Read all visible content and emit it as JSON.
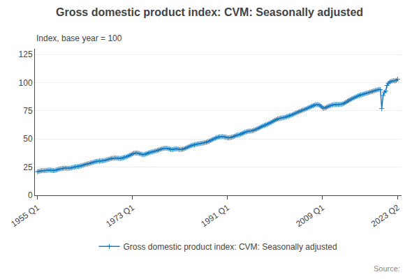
{
  "chart_data": {
    "type": "line",
    "title": "Gross domestic product index: CVM: Seasonally adjusted",
    "subtitle": "Index, base year = 100",
    "annotations": [
      "Source:"
    ],
    "xlim": [
      1954.5,
      2024.0
    ],
    "xticks": [
      {
        "value": 1955.0,
        "label": "1955 Q1"
      },
      {
        "value": 1973.0,
        "label": "1973 Q1"
      },
      {
        "value": 1991.0,
        "label": "1991 Q1"
      },
      {
        "value": 2009.0,
        "label": "2009 Q1"
      },
      {
        "value": 2023.25,
        "label": "2023 Q2"
      }
    ],
    "ylim": [
      0,
      130
    ],
    "yticks": [
      0,
      25,
      50,
      75,
      100,
      125
    ],
    "grid": "y",
    "legend": "bottom",
    "x": [
      1955.0,
      1955.25,
      1955.5,
      1955.75,
      1956.0,
      1956.25,
      1956.5,
      1956.75,
      1957.0,
      1957.25,
      1957.5,
      1957.75,
      1958.0,
      1958.25,
      1958.5,
      1958.75,
      1959.0,
      1959.25,
      1959.5,
      1959.75,
      1960.0,
      1960.25,
      1960.5,
      1960.75,
      1961.0,
      1961.25,
      1961.5,
      1961.75,
      1962.0,
      1962.25,
      1962.5,
      1962.75,
      1963.0,
      1963.25,
      1963.5,
      1963.75,
      1964.0,
      1964.25,
      1964.5,
      1964.75,
      1965.0,
      1965.25,
      1965.5,
      1965.75,
      1966.0,
      1966.25,
      1966.5,
      1966.75,
      1967.0,
      1967.25,
      1967.5,
      1967.75,
      1968.0,
      1968.25,
      1968.5,
      1968.75,
      1969.0,
      1969.25,
      1969.5,
      1969.75,
      1970.0,
      1970.25,
      1970.5,
      1970.75,
      1971.0,
      1971.25,
      1971.5,
      1971.75,
      1972.0,
      1972.25,
      1972.5,
      1972.75,
      1973.0,
      1973.25,
      1973.5,
      1973.75,
      1974.0,
      1974.25,
      1974.5,
      1974.75,
      1975.0,
      1975.25,
      1975.5,
      1975.75,
      1976.0,
      1976.25,
      1976.5,
      1976.75,
      1977.0,
      1977.25,
      1977.5,
      1977.75,
      1978.0,
      1978.25,
      1978.5,
      1978.75,
      1979.0,
      1979.25,
      1979.5,
      1979.75,
      1980.0,
      1980.25,
      1980.5,
      1980.75,
      1981.0,
      1981.25,
      1981.5,
      1981.75,
      1982.0,
      1982.25,
      1982.5,
      1982.75,
      1983.0,
      1983.25,
      1983.5,
      1983.75,
      1984.0,
      1984.25,
      1984.5,
      1984.75,
      1985.0,
      1985.25,
      1985.5,
      1985.75,
      1986.0,
      1986.25,
      1986.5,
      1986.75,
      1987.0,
      1987.25,
      1987.5,
      1987.75,
      1988.0,
      1988.25,
      1988.5,
      1988.75,
      1989.0,
      1989.25,
      1989.5,
      1989.75,
      1990.0,
      1990.25,
      1990.5,
      1990.75,
      1991.0,
      1991.25,
      1991.5,
      1991.75,
      1992.0,
      1992.25,
      1992.5,
      1992.75,
      1993.0,
      1993.25,
      1993.5,
      1993.75,
      1994.0,
      1994.25,
      1994.5,
      1994.75,
      1995.0,
      1995.25,
      1995.5,
      1995.75,
      1996.0,
      1996.25,
      1996.5,
      1996.75,
      1997.0,
      1997.25,
      1997.5,
      1997.75,
      1998.0,
      1998.25,
      1998.5,
      1998.75,
      1999.0,
      1999.25,
      1999.5,
      1999.75,
      2000.0,
      2000.25,
      2000.5,
      2000.75,
      2001.0,
      2001.25,
      2001.5,
      2001.75,
      2002.0,
      2002.25,
      2002.5,
      2002.75,
      2003.0,
      2003.25,
      2003.5,
      2003.75,
      2004.0,
      2004.25,
      2004.5,
      2004.75,
      2005.0,
      2005.25,
      2005.5,
      2005.75,
      2006.0,
      2006.25,
      2006.5,
      2006.75,
      2007.0,
      2007.25,
      2007.5,
      2007.75,
      2008.0,
      2008.25,
      2008.5,
      2008.75,
      2009.0,
      2009.25,
      2009.5,
      2009.75,
      2010.0,
      2010.25,
      2010.5,
      2010.75,
      2011.0,
      2011.25,
      2011.5,
      2011.75,
      2012.0,
      2012.25,
      2012.5,
      2012.75,
      2013.0,
      2013.25,
      2013.5,
      2013.75,
      2014.0,
      2014.25,
      2014.5,
      2014.75,
      2015.0,
      2015.25,
      2015.5,
      2015.75,
      2016.0,
      2016.25,
      2016.5,
      2016.75,
      2017.0,
      2017.25,
      2017.5,
      2017.75,
      2018.0,
      2018.25,
      2018.5,
      2018.75,
      2019.0,
      2019.25,
      2019.5,
      2019.75,
      2020.0,
      2020.25,
      2020.5,
      2020.75,
      2021.0,
      2021.25,
      2021.5,
      2021.75,
      2022.0,
      2022.25,
      2022.5,
      2022.75,
      2023.0,
      2023.25
    ],
    "series": [
      {
        "name": "Gross domestic product index: CVM: Seasonally adjusted",
        "color": "#1a7abf",
        "marker": "plus",
        "values": [
          21.0,
          21.2,
          21.5,
          21.8,
          21.9,
          21.8,
          22.0,
          22.1,
          22.3,
          22.4,
          22.3,
          22.1,
          21.9,
          22.0,
          22.4,
          22.7,
          23.2,
          23.5,
          23.6,
          23.8,
          24.0,
          24.1,
          24.0,
          23.9,
          24.0,
          24.2,
          24.5,
          24.8,
          25.1,
          25.3,
          25.5,
          25.6,
          25.9,
          26.2,
          26.5,
          26.8,
          27.3,
          27.7,
          27.9,
          28.1,
          28.5,
          28.9,
          29.2,
          29.6,
          30.0,
          30.2,
          30.3,
          30.4,
          30.5,
          30.6,
          30.7,
          30.9,
          31.3,
          31.7,
          32.0,
          32.3,
          32.7,
          32.9,
          33.0,
          33.1,
          33.0,
          32.9,
          32.8,
          32.7,
          33.0,
          33.4,
          33.7,
          34.0,
          34.5,
          35.0,
          35.5,
          36.0,
          36.8,
          37.3,
          37.5,
          37.6,
          37.4,
          37.1,
          36.8,
          36.4,
          36.0,
          36.2,
          36.6,
          37.0,
          37.6,
          38.0,
          38.3,
          38.5,
          38.9,
          39.2,
          39.5,
          39.8,
          40.3,
          40.8,
          41.1,
          41.4,
          41.7,
          41.8,
          41.7,
          41.5,
          41.2,
          40.8,
          40.6,
          40.8,
          41.1,
          41.3,
          41.2,
          40.9,
          40.7,
          40.8,
          40.9,
          41.2,
          41.7,
          42.2,
          42.8,
          43.3,
          43.9,
          44.3,
          44.6,
          44.8,
          45.2,
          45.5,
          45.7,
          45.8,
          46.1,
          46.3,
          46.5,
          46.7,
          47.1,
          47.6,
          48.0,
          48.5,
          49.1,
          49.7,
          50.2,
          50.8,
          51.3,
          51.7,
          51.9,
          52.0,
          52.1,
          52.0,
          51.8,
          51.5,
          51.1,
          51.0,
          51.2,
          51.5,
          51.8,
          52.3,
          52.8,
          53.3,
          53.5,
          53.8,
          54.2,
          54.7,
          55.3,
          55.8,
          56.2,
          56.6,
          56.9,
          57.0,
          57.1,
          57.3,
          57.7,
          58.2,
          58.7,
          59.2,
          59.8,
          60.4,
          61.0,
          61.5,
          62.0,
          62.5,
          63.0,
          63.5,
          64.1,
          64.7,
          65.3,
          65.9,
          66.6,
          67.2,
          67.7,
          68.1,
          68.4,
          68.6,
          68.8,
          69.0,
          69.4,
          69.8,
          70.2,
          70.6,
          71.0,
          71.5,
          72.0,
          72.5,
          73.1,
          73.6,
          74.1,
          74.6,
          75.1,
          75.6,
          76.0,
          76.4,
          76.9,
          77.5,
          78.0,
          78.5,
          79.1,
          79.6,
          80.1,
          80.4,
          80.5,
          80.4,
          80.0,
          79.0,
          77.8,
          77.2,
          77.5,
          78.0,
          78.7,
          79.2,
          79.6,
          80.0,
          80.3,
          80.5,
          80.5,
          80.6,
          80.5,
          80.7,
          80.7,
          80.9,
          81.4,
          82.0,
          82.7,
          83.5,
          84.2,
          84.9,
          85.5,
          86.0,
          86.6,
          87.2,
          87.7,
          88.2,
          88.7,
          89.1,
          89.4,
          89.7,
          90.1,
          90.5,
          90.8,
          91.1,
          91.5,
          91.9,
          92.3,
          92.6,
          93.0,
          93.4,
          93.7,
          94.0,
          93.8,
          77.0,
          88.5,
          91.5,
          92.5,
          97.5,
          99.5,
          100.5,
          101.0,
          101.5,
          101.8,
          101.5,
          102.0,
          103.0
        ]
      }
    ]
  }
}
